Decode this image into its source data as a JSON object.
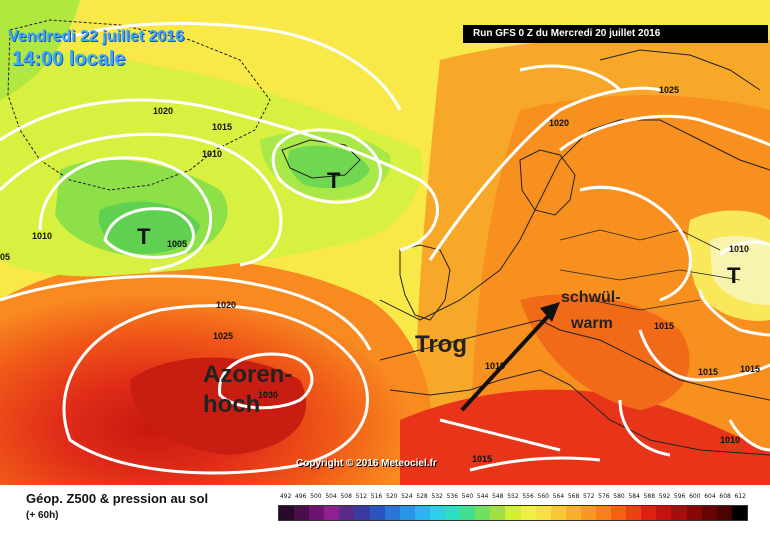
{
  "header": {
    "date": "Vendredi 22 juillet 2016",
    "time": "14:00 locale",
    "run": "Run GFS 0 Z du Mercredi 20 juillet 2016"
  },
  "map": {
    "isobar_labels": [
      "1020",
      "1015",
      "1010",
      "1010",
      "1005",
      "05",
      "1020",
      "1025",
      "1030",
      "1025",
      "1020",
      "1010",
      "1015",
      "1015",
      "1015",
      "1015",
      "1010",
      "1015"
    ],
    "pressure_symbols": [
      "T",
      "T",
      "T"
    ],
    "annotations": {
      "high": "Azoren-\nhoch",
      "trough": "Trog",
      "humid_line1": "schwül-",
      "humid_line2": "warm"
    },
    "copyright": "Copyright © 2016 Meteociel.fr"
  },
  "legend": {
    "title": "Géop. Z500 & pression au sol",
    "subtitle": "(+ 60h)",
    "scale_values": [
      "492",
      "496",
      "500",
      "504",
      "508",
      "512",
      "516",
      "520",
      "524",
      "528",
      "532",
      "536",
      "540",
      "544",
      "548",
      "552",
      "556",
      "560",
      "564",
      "568",
      "572",
      "576",
      "580",
      "584",
      "588",
      "592",
      "596",
      "600",
      "604",
      "608",
      "612"
    ],
    "scale_colors": [
      "#2a0a2a",
      "#4a0e4a",
      "#6e1470",
      "#8f2090",
      "#5a2a8a",
      "#3a3aa0",
      "#2a55c0",
      "#2a75d8",
      "#2a95e8",
      "#2ab5f0",
      "#2ad0e8",
      "#2ae0c0",
      "#40e090",
      "#70e060",
      "#a0e040",
      "#d0f030",
      "#f0f040",
      "#f8e040",
      "#f8c830",
      "#f8b028",
      "#f89820",
      "#f88018",
      "#f86010",
      "#f04010",
      "#e02010",
      "#c81010",
      "#a80c0c",
      "#880808",
      "#680404",
      "#4a0202",
      "#000000"
    ]
  }
}
